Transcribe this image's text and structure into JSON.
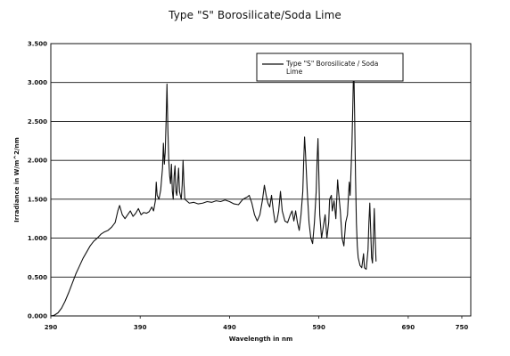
{
  "chart_data": {
    "type": "line",
    "title": "Type \"S\" Borosilicate/Soda Lime",
    "xlabel": "Wavelength in nm",
    "ylabel": "Irradiance in W/m^2/nm",
    "xlim": [
      290,
      760
    ],
    "ylim": [
      0,
      3.5
    ],
    "x_ticks": [
      "290",
      "390",
      "490",
      "590",
      "690",
      "750"
    ],
    "y_ticks": [
      "0.000",
      "0.500",
      "1.000",
      "1.500",
      "2.000",
      "2.500",
      "3.000",
      "3.500"
    ],
    "grid": "horizontal",
    "legend_position": "top-right",
    "series": [
      {
        "name": "Type \"S\" Borosilicate / Soda Lime",
        "color": "#111111",
        "points": [
          [
            290,
            0.0
          ],
          [
            294,
            0.01
          ],
          [
            298,
            0.04
          ],
          [
            302,
            0.1
          ],
          [
            306,
            0.19
          ],
          [
            310,
            0.3
          ],
          [
            314,
            0.42
          ],
          [
            318,
            0.54
          ],
          [
            322,
            0.64
          ],
          [
            326,
            0.74
          ],
          [
            330,
            0.82
          ],
          [
            334,
            0.9
          ],
          [
            338,
            0.96
          ],
          [
            342,
            1.0
          ],
          [
            346,
            1.05
          ],
          [
            350,
            1.08
          ],
          [
            354,
            1.1
          ],
          [
            358,
            1.14
          ],
          [
            362,
            1.2
          ],
          [
            365,
            1.35
          ],
          [
            367,
            1.42
          ],
          [
            370,
            1.3
          ],
          [
            373,
            1.25
          ],
          [
            376,
            1.3
          ],
          [
            379,
            1.35
          ],
          [
            382,
            1.28
          ],
          [
            385,
            1.32
          ],
          [
            388,
            1.38
          ],
          [
            391,
            1.3
          ],
          [
            394,
            1.33
          ],
          [
            397,
            1.32
          ],
          [
            400,
            1.34
          ],
          [
            403,
            1.4
          ],
          [
            405,
            1.35
          ],
          [
            407,
            1.48
          ],
          [
            408,
            1.72
          ],
          [
            409,
            1.55
          ],
          [
            411,
            1.5
          ],
          [
            413,
            1.62
          ],
          [
            415,
            1.9
          ],
          [
            416,
            2.22
          ],
          [
            417,
            1.95
          ],
          [
            418,
            2.1
          ],
          [
            419,
            2.5
          ],
          [
            420,
            2.98
          ],
          [
            421,
            2.4
          ],
          [
            422,
            2.0
          ],
          [
            423,
            1.8
          ],
          [
            424,
            1.7
          ],
          [
            425,
            1.95
          ],
          [
            426,
            1.6
          ],
          [
            427,
            1.5
          ],
          [
            428,
            1.8
          ],
          [
            429,
            1.93
          ],
          [
            430,
            1.6
          ],
          [
            431,
            1.55
          ],
          [
            433,
            1.9
          ],
          [
            434,
            1.6
          ],
          [
            436,
            1.5
          ],
          [
            437,
            1.68
          ],
          [
            438,
            2.0
          ],
          [
            439,
            1.7
          ],
          [
            440,
            1.5
          ],
          [
            445,
            1.45
          ],
          [
            450,
            1.46
          ],
          [
            455,
            1.44
          ],
          [
            460,
            1.45
          ],
          [
            465,
            1.47
          ],
          [
            470,
            1.46
          ],
          [
            475,
            1.48
          ],
          [
            480,
            1.47
          ],
          [
            485,
            1.49
          ],
          [
            490,
            1.47
          ],
          [
            495,
            1.44
          ],
          [
            500,
            1.43
          ],
          [
            505,
            1.5
          ],
          [
            510,
            1.53
          ],
          [
            512,
            1.55
          ],
          [
            515,
            1.45
          ],
          [
            518,
            1.3
          ],
          [
            521,
            1.22
          ],
          [
            524,
            1.3
          ],
          [
            527,
            1.5
          ],
          [
            529,
            1.68
          ],
          [
            531,
            1.55
          ],
          [
            533,
            1.45
          ],
          [
            535,
            1.4
          ],
          [
            537,
            1.55
          ],
          [
            539,
            1.35
          ],
          [
            541,
            1.2
          ],
          [
            543,
            1.22
          ],
          [
            545,
            1.35
          ],
          [
            547,
            1.6
          ],
          [
            549,
            1.35
          ],
          [
            552,
            1.22
          ],
          [
            555,
            1.2
          ],
          [
            558,
            1.3
          ],
          [
            560,
            1.35
          ],
          [
            562,
            1.22
          ],
          [
            564,
            1.35
          ],
          [
            566,
            1.2
          ],
          [
            568,
            1.1
          ],
          [
            570,
            1.3
          ],
          [
            572,
            1.6
          ],
          [
            573,
            1.98
          ],
          [
            574,
            2.3
          ],
          [
            575,
            2.1
          ],
          [
            577,
            1.6
          ],
          [
            579,
            1.2
          ],
          [
            581,
            1.0
          ],
          [
            583,
            0.93
          ],
          [
            585,
            1.2
          ],
          [
            587,
            1.6
          ],
          [
            588,
            2.0
          ],
          [
            589,
            2.28
          ],
          [
            590,
            1.8
          ],
          [
            591,
            1.3
          ],
          [
            593,
            1.0
          ],
          [
            595,
            1.15
          ],
          [
            597,
            1.3
          ],
          [
            599,
            1.0
          ],
          [
            601,
            1.2
          ],
          [
            602,
            1.5
          ],
          [
            604,
            1.55
          ],
          [
            605,
            1.35
          ],
          [
            607,
            1.48
          ],
          [
            609,
            1.25
          ],
          [
            611,
            1.75
          ],
          [
            612,
            1.6
          ],
          [
            614,
            1.35
          ],
          [
            616,
            1.0
          ],
          [
            618,
            0.9
          ],
          [
            620,
            1.2
          ],
          [
            622,
            1.3
          ],
          [
            624,
            1.72
          ],
          [
            625,
            1.55
          ],
          [
            627,
            2.2
          ],
          [
            628,
            2.7
          ],
          [
            629,
            3.28
          ],
          [
            630,
            2.6
          ],
          [
            631,
            1.8
          ],
          [
            632,
            1.2
          ],
          [
            633,
            0.9
          ],
          [
            634,
            0.75
          ],
          [
            636,
            0.65
          ],
          [
            638,
            0.62
          ],
          [
            640,
            0.8
          ],
          [
            641,
            0.62
          ],
          [
            643,
            0.6
          ],
          [
            645,
            0.85
          ],
          [
            646,
            1.2
          ],
          [
            647,
            1.45
          ],
          [
            648,
            1.1
          ],
          [
            649,
            0.75
          ],
          [
            650,
            0.68
          ],
          [
            651,
            1.0
          ],
          [
            652,
            1.38
          ],
          [
            653,
            1.0
          ],
          [
            654,
            0.7
          ]
        ]
      }
    ]
  }
}
